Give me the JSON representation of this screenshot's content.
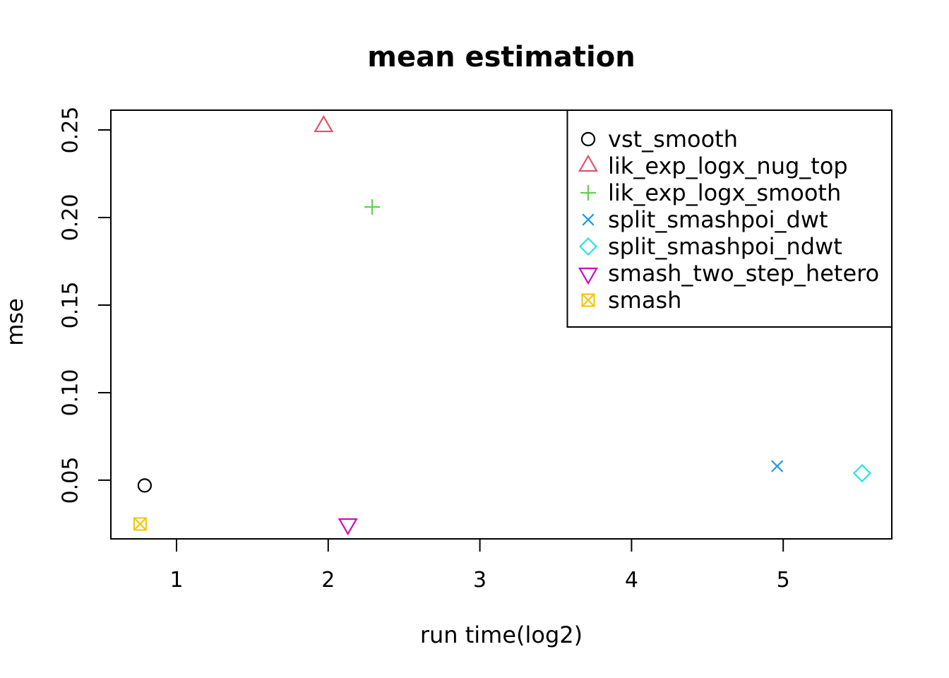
{
  "figure": {
    "background": "#ffffff",
    "axis_color": "#000000",
    "text_color": "#000000"
  },
  "chart_data": {
    "type": "scatter",
    "title": "mean estimation",
    "xlabel": "run time(log2)",
    "ylabel": "mse",
    "xlim": [
      0.567,
      5.716
    ],
    "ylim": [
      0.0165,
      0.2613
    ],
    "x_ticks": [
      1,
      2,
      3,
      4,
      5
    ],
    "x_tick_labels": [
      "1",
      "2",
      "3",
      "4",
      "5"
    ],
    "y_ticks": [
      0.05,
      0.1,
      0.15,
      0.2,
      0.25
    ],
    "y_tick_labels": [
      "0.05",
      "0.10",
      "0.15",
      "0.20",
      "0.25"
    ],
    "grid": false,
    "legend_position": "topright",
    "series": [
      {
        "name": "vst_smooth",
        "marker": "circle",
        "color": "#000000",
        "points": [
          [
            0.79,
            0.047
          ]
        ]
      },
      {
        "name": "lik_exp_logx_nug_top",
        "marker": "triangle-up",
        "color": "#DF536B",
        "points": [
          [
            1.97,
            0.252
          ]
        ]
      },
      {
        "name": "lik_exp_logx_smooth",
        "marker": "plus",
        "color": "#61D04F",
        "points": [
          [
            2.29,
            0.206
          ]
        ]
      },
      {
        "name": "split_smashpoi_dwt",
        "marker": "x",
        "color": "#2297E6",
        "points": [
          [
            4.96,
            0.058
          ]
        ]
      },
      {
        "name": "split_smashpoi_ndwt",
        "marker": "diamond",
        "color": "#28E2E5",
        "points": [
          [
            5.52,
            0.054
          ]
        ]
      },
      {
        "name": "smash_two_step_hetero",
        "marker": "triangle-down",
        "color": "#CD0BBC",
        "points": [
          [
            2.13,
            0.025
          ]
        ]
      },
      {
        "name": "smash",
        "marker": "square-x",
        "color": "#F5C710",
        "points": [
          [
            0.76,
            0.025
          ]
        ]
      }
    ]
  }
}
